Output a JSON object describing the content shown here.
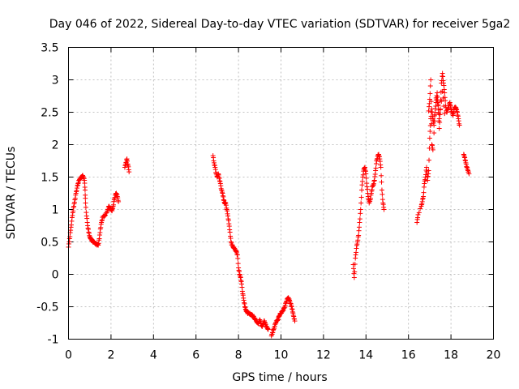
{
  "chart_data": {
    "type": "scatter",
    "title": "Day 046 of 2022, Sidereal Day-to-day VTEC variation (SDTVAR) for receiver 5ga2",
    "xlabel": "GPS time / hours",
    "ylabel": "SDTVAR / TECUs",
    "xlim": [
      0,
      20
    ],
    "ylim": [
      -1,
      3.5
    ],
    "xticks": [
      0,
      2,
      4,
      6,
      8,
      10,
      12,
      14,
      16,
      18,
      20
    ],
    "xtick_labels": [
      "0",
      "2",
      "4",
      "6",
      "8",
      "10",
      "12",
      "14",
      "16",
      "18",
      "20"
    ],
    "yticks": [
      -1,
      -0.5,
      0,
      0.5,
      1,
      1.5,
      2,
      2.5,
      3,
      3.5
    ],
    "ytick_labels": [
      "-1",
      "-0.5",
      "0",
      "0.5",
      "1",
      "1.5",
      "2",
      "2.5",
      "3",
      "3.5"
    ],
    "grid": true,
    "marker": "+",
    "color": "#ff0000",
    "series": [
      {
        "name": "SDTVAR",
        "segments": [
          [
            [
              0.0,
              0.42
            ],
            [
              0.05,
              0.55
            ],
            [
              0.1,
              0.68
            ],
            [
              0.15,
              0.82
            ],
            [
              0.2,
              0.95
            ],
            [
              0.25,
              1.05
            ],
            [
              0.3,
              1.15
            ],
            [
              0.35,
              1.25
            ],
            [
              0.4,
              1.33
            ],
            [
              0.45,
              1.4
            ],
            [
              0.5,
              1.45
            ],
            [
              0.55,
              1.48
            ],
            [
              0.6,
              1.5
            ],
            [
              0.65,
              1.52
            ],
            [
              0.7,
              1.5
            ],
            [
              0.75,
              1.45
            ],
            [
              0.78,
              1.3
            ],
            [
              0.8,
              1.1
            ],
            [
              0.85,
              0.9
            ],
            [
              0.9,
              0.75
            ],
            [
              0.95,
              0.65
            ],
            [
              1.0,
              0.58
            ],
            [
              1.05,
              0.55
            ],
            [
              1.1,
              0.52
            ],
            [
              1.15,
              0.5
            ],
            [
              1.2,
              0.5
            ],
            [
              1.25,
              0.48
            ],
            [
              1.3,
              0.47
            ],
            [
              1.35,
              0.46
            ],
            [
              1.4,
              0.45
            ],
            [
              1.45,
              0.55
            ],
            [
              1.5,
              0.7
            ],
            [
              1.55,
              0.8
            ],
            [
              1.6,
              0.88
            ],
            [
              1.7,
              0.9
            ],
            [
              1.8,
              0.95
            ],
            [
              1.85,
              1.0
            ],
            [
              1.9,
              1.05
            ],
            [
              1.95,
              1.02
            ],
            [
              2.0,
              1.0
            ],
            [
              2.05,
              0.98
            ],
            [
              2.1,
              1.05
            ],
            [
              2.15,
              1.15
            ],
            [
              2.2,
              1.22
            ],
            [
              2.25,
              1.25
            ],
            [
              2.3,
              1.2
            ],
            [
              2.35,
              1.12
            ]
          ],
          [
            [
              2.65,
              1.65
            ],
            [
              2.7,
              1.72
            ],
            [
              2.75,
              1.78
            ],
            [
              2.8,
              1.68
            ],
            [
              2.85,
              1.58
            ]
          ],
          [
            [
              6.8,
              1.83
            ],
            [
              6.85,
              1.72
            ],
            [
              6.9,
              1.65
            ],
            [
              6.95,
              1.55
            ],
            [
              7.0,
              1.5
            ],
            [
              7.05,
              1.55
            ],
            [
              7.1,
              1.48
            ],
            [
              7.15,
              1.4
            ],
            [
              7.2,
              1.3
            ],
            [
              7.25,
              1.25
            ],
            [
              7.3,
              1.15
            ],
            [
              7.35,
              1.1
            ],
            [
              7.4,
              1.1
            ],
            [
              7.45,
              1.0
            ],
            [
              7.5,
              0.9
            ],
            [
              7.55,
              0.78
            ],
            [
              7.6,
              0.65
            ],
            [
              7.65,
              0.5
            ],
            [
              7.7,
              0.45
            ],
            [
              7.75,
              0.42
            ],
            [
              7.8,
              0.4
            ],
            [
              7.85,
              0.38
            ],
            [
              7.9,
              0.35
            ],
            [
              7.95,
              0.3
            ],
            [
              8.0,
              0.1
            ],
            [
              8.05,
              0.0
            ],
            [
              8.1,
              -0.05
            ],
            [
              8.15,
              -0.15
            ],
            [
              8.2,
              -0.3
            ],
            [
              8.25,
              -0.4
            ],
            [
              8.3,
              -0.5
            ],
            [
              8.35,
              -0.55
            ],
            [
              8.4,
              -0.58
            ],
            [
              8.45,
              -0.6
            ],
            [
              8.5,
              -0.6
            ],
            [
              8.55,
              -0.62
            ],
            [
              8.6,
              -0.62
            ],
            [
              8.65,
              -0.63
            ],
            [
              8.7,
              -0.65
            ],
            [
              8.75,
              -0.68
            ],
            [
              8.8,
              -0.7
            ],
            [
              8.85,
              -0.72
            ],
            [
              8.9,
              -0.75
            ],
            [
              8.95,
              -0.75
            ],
            [
              9.0,
              -0.7
            ],
            [
              9.05,
              -0.75
            ],
            [
              9.1,
              -0.8
            ],
            [
              9.15,
              -0.78
            ],
            [
              9.2,
              -0.72
            ],
            [
              9.25,
              -0.75
            ],
            [
              9.3,
              -0.8
            ],
            [
              9.35,
              -0.82
            ],
            [
              9.4,
              -0.85
            ]
          ],
          [
            [
              9.55,
              -0.95
            ],
            [
              9.6,
              -0.9
            ],
            [
              9.65,
              -0.85
            ],
            [
              9.7,
              -0.8
            ],
            [
              9.75,
              -0.75
            ],
            [
              9.8,
              -0.72
            ],
            [
              9.85,
              -0.7
            ],
            [
              9.9,
              -0.65
            ],
            [
              9.95,
              -0.62
            ],
            [
              10.0,
              -0.6
            ],
            [
              10.05,
              -0.58
            ],
            [
              10.1,
              -0.55
            ],
            [
              10.15,
              -0.52
            ],
            [
              10.2,
              -0.48
            ],
            [
              10.25,
              -0.42
            ],
            [
              10.3,
              -0.38
            ],
            [
              10.35,
              -0.36
            ],
            [
              10.4,
              -0.4
            ],
            [
              10.45,
              -0.45
            ],
            [
              10.5,
              -0.5
            ],
            [
              10.55,
              -0.58
            ],
            [
              10.6,
              -0.65
            ],
            [
              10.65,
              -0.72
            ]
          ],
          [
            [
              13.4,
              0.15
            ],
            [
              13.45,
              -0.05
            ],
            [
              13.5,
              0.25
            ],
            [
              13.55,
              0.4
            ],
            [
              13.6,
              0.5
            ],
            [
              13.65,
              0.6
            ],
            [
              13.7,
              0.8
            ],
            [
              13.75,
              1.0
            ],
            [
              13.8,
              1.3
            ],
            [
              13.85,
              1.5
            ],
            [
              13.9,
              1.62
            ],
            [
              13.95,
              1.65
            ],
            [
              14.0,
              1.55
            ],
            [
              14.05,
              1.35
            ],
            [
              14.1,
              1.2
            ],
            [
              14.15,
              1.1
            ],
            [
              14.2,
              1.15
            ],
            [
              14.25,
              1.25
            ],
            [
              14.3,
              1.35
            ],
            [
              14.35,
              1.38
            ],
            [
              14.4,
              1.45
            ],
            [
              14.45,
              1.6
            ],
            [
              14.5,
              1.75
            ],
            [
              14.55,
              1.82
            ],
            [
              14.6,
              1.85
            ],
            [
              14.65,
              1.78
            ],
            [
              14.7,
              1.65
            ],
            [
              14.75,
              1.3
            ],
            [
              14.8,
              1.1
            ],
            [
              14.85,
              1.0
            ]
          ],
          [
            [
              16.4,
              0.8
            ],
            [
              16.45,
              0.92
            ],
            [
              16.6,
              1.05
            ],
            [
              16.65,
              1.12
            ],
            [
              16.7,
              1.2
            ],
            [
              16.75,
              1.4
            ],
            [
              16.8,
              1.5
            ],
            [
              16.85,
              1.65
            ],
            [
              16.9,
              1.45
            ],
            [
              16.95,
              1.6
            ],
            [
              17.0,
              2.1
            ],
            [
              17.05,
              2.4
            ],
            [
              17.1,
              2.55
            ],
            [
              17.15,
              2.4
            ],
            [
              17.2,
              2.3
            ],
            [
              17.25,
              2.5
            ],
            [
              17.3,
              2.65
            ],
            [
              17.35,
              2.8
            ],
            [
              17.4,
              2.6
            ],
            [
              17.45,
              2.25
            ],
            [
              17.5,
              2.55
            ],
            [
              17.55,
              2.95
            ],
            [
              17.6,
              3.1
            ],
            [
              17.65,
              2.95
            ],
            [
              17.7,
              2.8
            ],
            [
              17.75,
              2.6
            ],
            [
              17.8,
              2.5
            ],
            [
              17.85,
              2.55
            ],
            [
              17.9,
              2.6
            ],
            [
              17.95,
              2.65
            ],
            [
              18.0,
              2.55
            ],
            [
              18.05,
              2.5
            ],
            [
              18.1,
              2.45
            ],
            [
              18.15,
              2.55
            ],
            [
              18.2,
              2.58
            ],
            [
              18.25,
              2.55
            ],
            [
              18.3,
              2.5
            ],
            [
              18.35,
              2.4
            ],
            [
              18.4,
              2.3
            ]
          ],
          [
            [
              16.95,
              2.52
            ],
            [
              17.0,
              2.7
            ],
            [
              17.05,
              3.0
            ],
            [
              17.1,
              2.0
            ],
            [
              17.15,
              1.92
            ],
            [
              17.3,
              2.72
            ],
            [
              17.4,
              2.62
            ],
            [
              17.45,
              2.4
            ],
            [
              17.6,
              2.82
            ],
            [
              17.7,
              2.48
            ]
          ],
          [
            [
              18.6,
              1.85
            ],
            [
              18.65,
              1.8
            ],
            [
              18.7,
              1.72
            ],
            [
              18.75,
              1.65
            ],
            [
              18.8,
              1.6
            ],
            [
              18.85,
              1.55
            ]
          ]
        ]
      }
    ]
  }
}
